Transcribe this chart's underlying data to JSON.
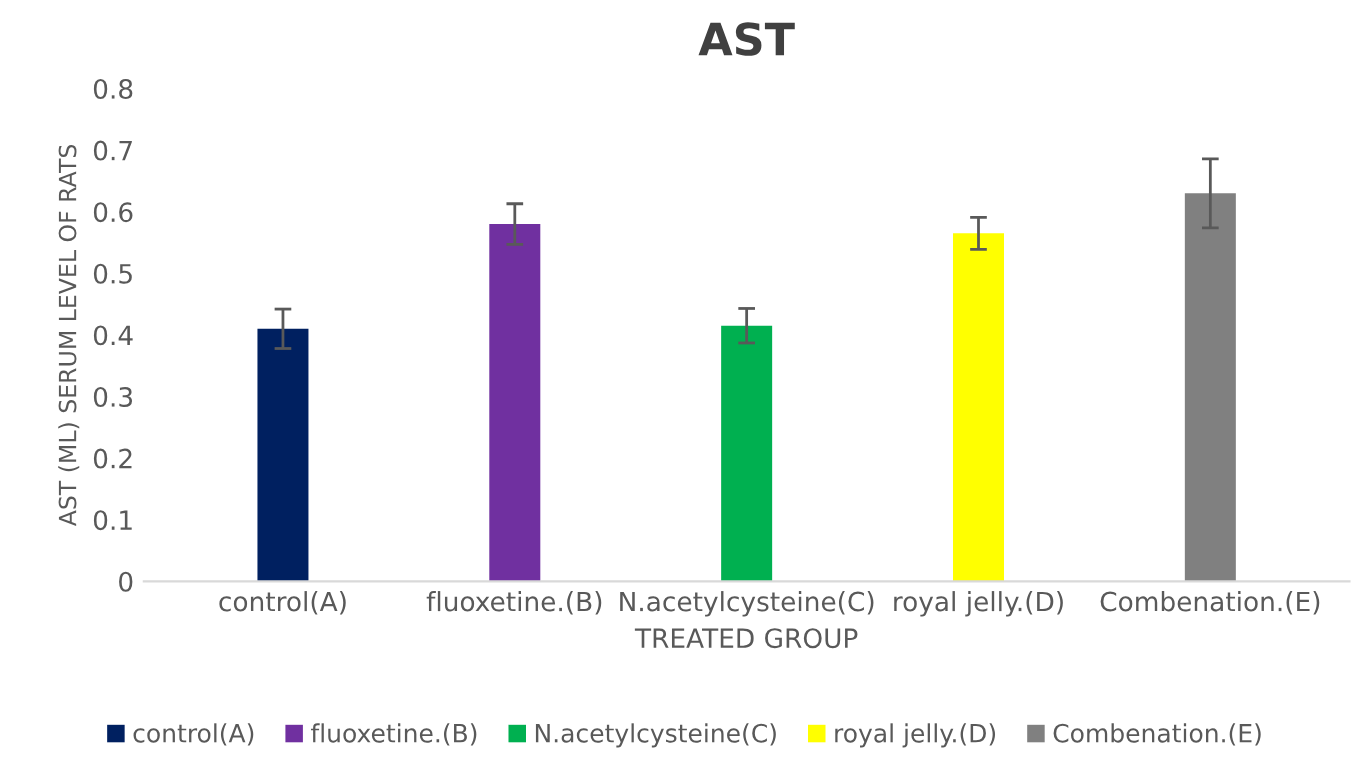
{
  "chart_data": {
    "type": "bar",
    "title": "AST",
    "xlabel": "TREATED GROUP",
    "ylabel": "AST (ML) SERUM LEVEL OF RATS",
    "categories": [
      "control(A)",
      "fluoxetine.(B)",
      "N.acetylcysteine(C)",
      "royal jelly.(D)",
      "Combenation.(E)"
    ],
    "series": [
      {
        "name": "control(A)",
        "color": "#002060",
        "values": [
          0.41,
          null,
          null,
          null,
          null
        ],
        "errors": [
          0.032,
          null,
          null,
          null,
          null
        ]
      },
      {
        "name": "fluoxetine.(B)",
        "color": "#7030a0",
        "values": [
          null,
          0.58,
          null,
          null,
          null
        ],
        "errors": [
          null,
          0.033,
          null,
          null,
          null
        ]
      },
      {
        "name": "N.acetylcysteine(C)",
        "color": "#00b050",
        "values": [
          null,
          null,
          0.415,
          null,
          null
        ],
        "errors": [
          null,
          null,
          0.028,
          null,
          null
        ]
      },
      {
        "name": "royal jelly.(D)",
        "color": "#ffff00",
        "values": [
          null,
          null,
          null,
          0.565,
          null
        ],
        "errors": [
          null,
          null,
          null,
          0.026,
          null
        ]
      },
      {
        "name": "Combenation.(E)",
        "color": "#808080",
        "values": [
          null,
          null,
          null,
          null,
          0.63
        ],
        "errors": [
          null,
          null,
          null,
          null,
          0.056
        ]
      }
    ],
    "ylim": [
      0,
      0.8
    ],
    "yticks": [
      0,
      0.1,
      0.2,
      0.3,
      0.4,
      0.5,
      0.6,
      0.7,
      0.8
    ],
    "grid": false,
    "legend": "bottom"
  }
}
